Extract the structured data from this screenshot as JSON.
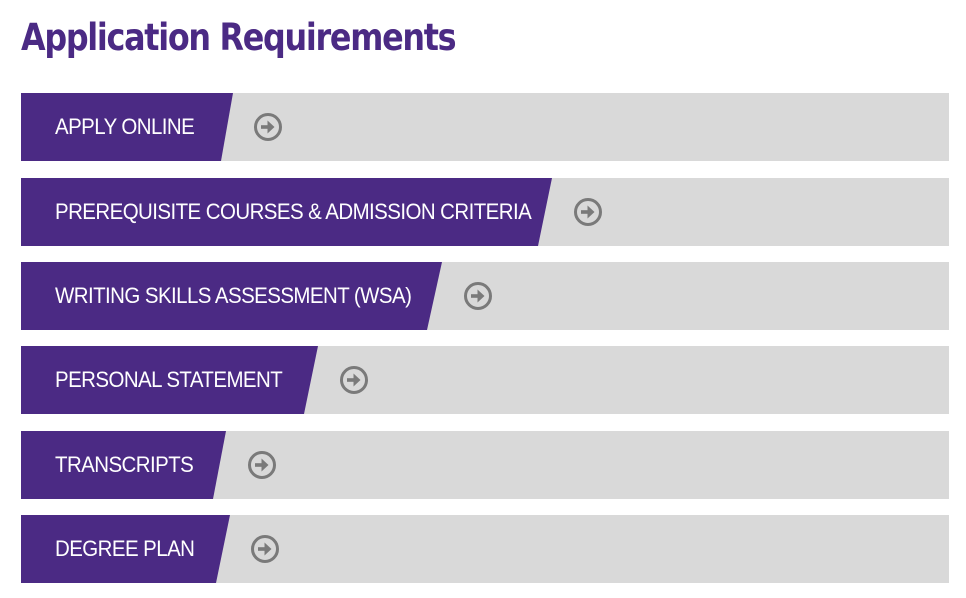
{
  "page": {
    "title": "Application Requirements"
  },
  "colors": {
    "title": "#4b2a84",
    "label_background": "#4b2a84",
    "label_text": "#ffffff",
    "row_background": "#d9d9d9",
    "arrow_icon": "#7a7a7a"
  },
  "requirements": [
    {
      "label": "APPLY ONLINE",
      "icon": "circle-arrow-right-icon"
    },
    {
      "label": "PREREQUISITE COURSES & ADMISSION CRITERIA",
      "icon": "circle-arrow-right-icon"
    },
    {
      "label": "WRITING SKILLS ASSESSMENT (WSA)",
      "icon": "circle-arrow-right-icon"
    },
    {
      "label": "PERSONAL STATEMENT",
      "icon": "circle-arrow-right-icon"
    },
    {
      "label": "TRANSCRIPTS",
      "icon": "circle-arrow-right-icon"
    },
    {
      "label": "DEGREE PLAN",
      "icon": "circle-arrow-right-icon"
    }
  ]
}
